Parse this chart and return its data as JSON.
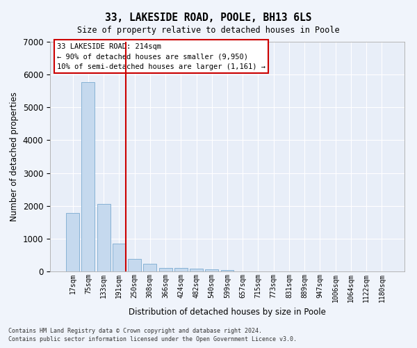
{
  "title": "33, LAKESIDE ROAD, POOLE, BH13 6LS",
  "subtitle": "Size of property relative to detached houses in Poole",
  "xlabel": "Distribution of detached houses by size in Poole",
  "ylabel": "Number of detached properties",
  "bar_color": "#c5d9ee",
  "bar_edge_color": "#7aaad0",
  "bg_color": "#e8eef8",
  "grid_color": "#ffffff",
  "fig_bg_color": "#f0f4fb",
  "categories": [
    "17sqm",
    "75sqm",
    "133sqm",
    "191sqm",
    "250sqm",
    "308sqm",
    "366sqm",
    "424sqm",
    "482sqm",
    "540sqm",
    "599sqm",
    "657sqm",
    "715sqm",
    "773sqm",
    "831sqm",
    "889sqm",
    "947sqm",
    "1006sqm",
    "1064sqm",
    "1122sqm",
    "1180sqm"
  ],
  "values": [
    1780,
    5780,
    2060,
    840,
    380,
    230,
    115,
    110,
    75,
    55,
    45,
    0,
    0,
    0,
    0,
    0,
    0,
    0,
    0,
    0,
    0
  ],
  "vline_x": 3.42,
  "vline_color": "#cc0000",
  "annotation_text": "33 LAKESIDE ROAD: 214sqm\n← 90% of detached houses are smaller (9,950)\n10% of semi-detached houses are larger (1,161) →",
  "annotation_box_color": "#ffffff",
  "annotation_edge_color": "#cc0000",
  "footnote1": "Contains HM Land Registry data © Crown copyright and database right 2024.",
  "footnote2": "Contains public sector information licensed under the Open Government Licence v3.0.",
  "ylim": [
    0,
    7000
  ],
  "yticks": [
    0,
    1000,
    2000,
    3000,
    4000,
    5000,
    6000,
    7000
  ]
}
